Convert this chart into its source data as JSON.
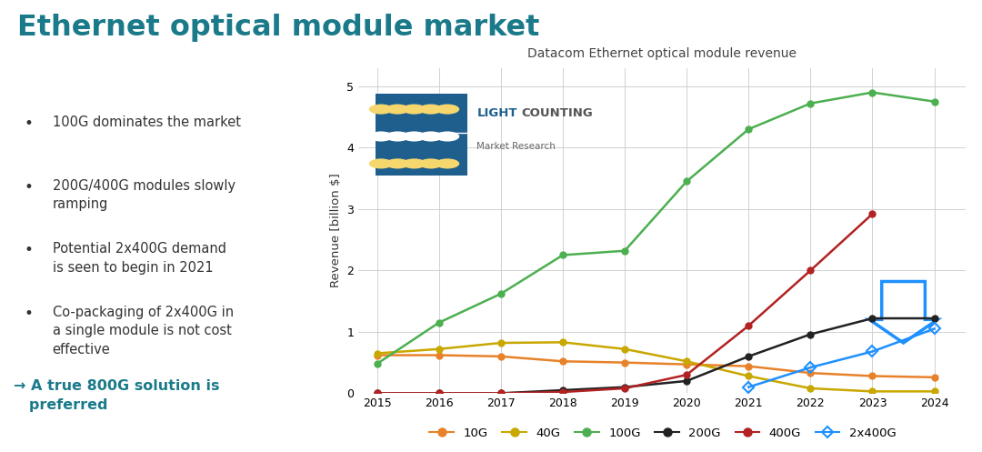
{
  "title": "Ethernet optical module market",
  "chart_title": "Datacom Ethernet optical module revenue",
  "ylabel": "Revenue [billion $]",
  "xlim": [
    2014.7,
    2024.5
  ],
  "ylim": [
    0,
    5.3
  ],
  "yticks": [
    0,
    1,
    2,
    3,
    4,
    5
  ],
  "years": [
    2015,
    2016,
    2017,
    2018,
    2019,
    2020,
    2021,
    2022,
    2023,
    2024
  ],
  "series": {
    "10G": {
      "color": "#e8822a",
      "marker": "o",
      "values": [
        0.62,
        0.62,
        0.6,
        0.52,
        0.5,
        0.47,
        0.44,
        0.33,
        0.28,
        0.26
      ]
    },
    "40G": {
      "color": "#c8a800",
      "marker": "o",
      "values": [
        0.65,
        0.72,
        0.82,
        0.83,
        0.72,
        0.52,
        0.28,
        0.08,
        0.03,
        0.03
      ]
    },
    "100G": {
      "color": "#4caf50",
      "marker": "o",
      "values": [
        0.48,
        1.15,
        1.62,
        2.25,
        2.32,
        3.45,
        4.3,
        4.72,
        4.9,
        4.75
      ]
    },
    "200G": {
      "color": "#222222",
      "marker": "o",
      "values": [
        0.0,
        0.0,
        0.0,
        0.05,
        0.1,
        0.2,
        0.6,
        0.96,
        1.22,
        1.22
      ]
    },
    "400G": {
      "color": "#b22222",
      "marker": "o",
      "values": [
        0.0,
        0.0,
        0.0,
        0.02,
        0.08,
        0.3,
        1.1,
        2.0,
        2.92,
        null
      ]
    },
    "2x400G": {
      "color": "#1e90ff",
      "marker": "D",
      "values": [
        null,
        null,
        null,
        null,
        null,
        null,
        0.1,
        0.42,
        0.68,
        1.05
      ]
    }
  },
  "bullet_points": [
    "100G dominates the market",
    "200G/400G modules slowly\nramping",
    "Potential 2x400G demand\nis seen to begin in 2021",
    "Co-packaging of 2x400G in\na single module is not cost\neffective"
  ],
  "arrow_text": "→ A true 800G solution is\n   preferred",
  "title_color": "#1a7a8a",
  "bullet_color": "#333333",
  "arrow_color": "#1a7a8a",
  "bg_color": "#ffffff",
  "grid_color": "#cccccc",
  "blue_arrow_color": "#1e90ff",
  "logo_blue": "#1e5f8e",
  "logo_dot_color1": "#f5d76e",
  "logo_dot_color2": "#d4a800"
}
